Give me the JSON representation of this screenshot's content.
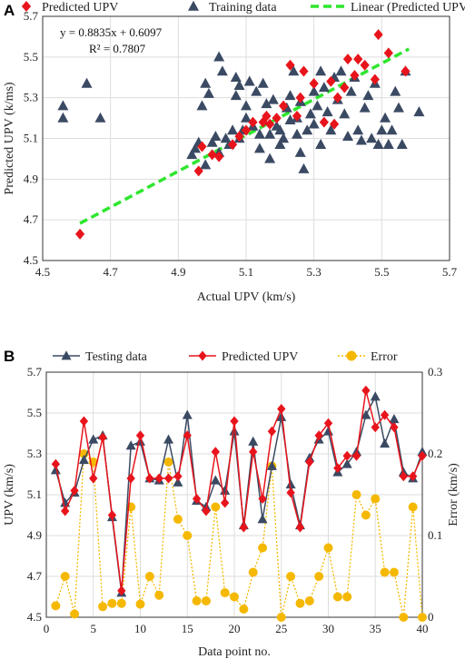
{
  "chart_data": [
    {
      "panel": "A",
      "type": "scatter",
      "xlabel": "Actual UPV (km/s)",
      "ylabel": "Predicted UPV (k/ms)",
      "xlim": [
        4.5,
        5.7
      ],
      "ylim": [
        4.5,
        5.7
      ],
      "xticks": [
        "4.5",
        "4.7",
        "4.9",
        "5.1",
        "5.3",
        "5.5",
        "5.7"
      ],
      "yticks": [
        "4.5",
        "4.7",
        "4.9",
        "5.1",
        "5.3",
        "5.5",
        "5.7"
      ],
      "grid": true,
      "legend": [
        "Predicted UPV",
        "Training data",
        "Linear (Predicted UPV)"
      ],
      "annotation": [
        "y = 0.8835x + 0.6097",
        "R² = 0.7807"
      ],
      "series": [
        {
          "name": "Training data",
          "marker": "triangle",
          "color": "#3b4a63",
          "points": [
            [
              4.56,
              5.26
            ],
            [
              4.56,
              5.2
            ],
            [
              4.63,
              5.37
            ],
            [
              4.67,
              5.2
            ],
            [
              4.94,
              5.02
            ],
            [
              4.95,
              5.05
            ],
            [
              4.96,
              5.08
            ],
            [
              4.97,
              5.26
            ],
            [
              4.98,
              5.37
            ],
            [
              4.98,
              4.97
            ],
            [
              4.99,
              5.32
            ],
            [
              5.0,
              5.08
            ],
            [
              5.01,
              5.11
            ],
            [
              5.02,
              5.5
            ],
            [
              5.02,
              5.03
            ],
            [
              5.03,
              5.43
            ],
            [
              5.04,
              5.1
            ],
            [
              5.05,
              5.07
            ],
            [
              5.06,
              5.14
            ],
            [
              5.07,
              5.4
            ],
            [
              5.07,
              5.31
            ],
            [
              5.08,
              5.36
            ],
            [
              5.08,
              5.1
            ],
            [
              5.09,
              5.14
            ],
            [
              5.1,
              5.26
            ],
            [
              5.1,
              5.2
            ],
            [
              5.11,
              5.38
            ],
            [
              5.12,
              5.16
            ],
            [
              5.13,
              5.33
            ],
            [
              5.14,
              5.12
            ],
            [
              5.14,
              5.05
            ],
            [
              5.15,
              5.37
            ],
            [
              5.16,
              5.27
            ],
            [
              5.17,
              5.0
            ],
            [
              5.17,
              5.12
            ],
            [
              5.18,
              5.29
            ],
            [
              5.19,
              5.16
            ],
            [
              5.2,
              5.14
            ],
            [
              5.2,
              5.07
            ],
            [
              5.21,
              5.1
            ],
            [
              5.22,
              5.25
            ],
            [
              5.23,
              5.19
            ],
            [
              5.23,
              5.31
            ],
            [
              5.24,
              5.43
            ],
            [
              5.25,
              5.12
            ],
            [
              5.25,
              5.2
            ],
            [
              5.26,
              5.28
            ],
            [
              5.26,
              5.03
            ],
            [
              5.27,
              4.95
            ],
            [
              5.28,
              5.14
            ],
            [
              5.29,
              5.22
            ],
            [
              5.3,
              5.33
            ],
            [
              5.3,
              5.17
            ],
            [
              5.31,
              5.26
            ],
            [
              5.32,
              5.43
            ],
            [
              5.32,
              5.07
            ],
            [
              5.33,
              5.35
            ],
            [
              5.34,
              5.23
            ],
            [
              5.35,
              5.14
            ],
            [
              5.36,
              5.4
            ],
            [
              5.37,
              5.29
            ],
            [
              5.38,
              5.43
            ],
            [
              5.39,
              5.22
            ],
            [
              5.4,
              5.11
            ],
            [
              5.41,
              5.33
            ],
            [
              5.42,
              5.4
            ],
            [
              5.43,
              5.14
            ],
            [
              5.44,
              5.09
            ],
            [
              5.45,
              5.25
            ],
            [
              5.46,
              5.31
            ],
            [
              5.47,
              5.1
            ],
            [
              5.48,
              5.37
            ],
            [
              5.49,
              5.07
            ],
            [
              5.5,
              5.14
            ],
            [
              5.51,
              5.2
            ],
            [
              5.52,
              5.07
            ],
            [
              5.53,
              5.14
            ],
            [
              5.54,
              5.33
            ],
            [
              5.55,
              5.25
            ],
            [
              5.56,
              5.07
            ],
            [
              5.57,
              5.43
            ],
            [
              5.61,
              5.23
            ]
          ]
        },
        {
          "name": "Predicted UPV",
          "marker": "diamond",
          "color": "#e8141c",
          "points": [
            [
              4.61,
              4.63
            ],
            [
              4.96,
              4.94
            ],
            [
              4.97,
              5.06
            ],
            [
              5.0,
              5.02
            ],
            [
              5.02,
              5.01
            ],
            [
              5.06,
              5.07
            ],
            [
              5.08,
              5.11
            ],
            [
              5.1,
              5.14
            ],
            [
              5.12,
              5.18
            ],
            [
              5.15,
              5.18
            ],
            [
              5.16,
              5.21
            ],
            [
              5.17,
              5.17
            ],
            [
              5.19,
              5.2
            ],
            [
              5.21,
              5.26
            ],
            [
              5.23,
              5.46
            ],
            [
              5.25,
              5.21
            ],
            [
              5.26,
              5.3
            ],
            [
              5.27,
              5.43
            ],
            [
              5.3,
              5.37
            ],
            [
              5.33,
              5.18
            ],
            [
              5.35,
              5.38
            ],
            [
              5.36,
              5.17
            ],
            [
              5.37,
              5.3
            ],
            [
              5.39,
              5.35
            ],
            [
              5.4,
              5.49
            ],
            [
              5.42,
              5.41
            ],
            [
              5.43,
              5.49
            ],
            [
              5.45,
              5.46
            ],
            [
              5.48,
              5.39
            ],
            [
              5.49,
              5.61
            ],
            [
              5.52,
              5.52
            ],
            [
              5.57,
              5.43
            ]
          ]
        },
        {
          "name": "Linear (Predicted UPV)",
          "type": "line",
          "style": "dashed",
          "color": "#2ee62e",
          "slope": 0.8835,
          "intercept": 0.6097,
          "x_range": [
            4.61,
            5.58
          ]
        }
      ]
    },
    {
      "panel": "B",
      "type": "line",
      "xlabel": "Data point no.",
      "ylabel": "UPV (km/s)",
      "ylabel_right": "Error (km/s)",
      "xlim": [
        0,
        40
      ],
      "ylim": [
        4.5,
        5.7
      ],
      "ylim_right": [
        0,
        0.3
      ],
      "xticks": [
        "0",
        "5",
        "10",
        "15",
        "20",
        "25",
        "30",
        "35",
        "40"
      ],
      "yticks": [
        "4.5",
        "4.7",
        "4.9",
        "5.1",
        "5.3",
        "5.5",
        "5.7"
      ],
      "yticks_right": [
        "0",
        "0.1",
        "0.2",
        "0.3"
      ],
      "grid": true,
      "legend": [
        "Testing data",
        "Predicted UPV",
        "Error"
      ],
      "x": [
        1,
        2,
        3,
        4,
        5,
        6,
        7,
        8,
        9,
        10,
        11,
        12,
        13,
        14,
        15,
        16,
        17,
        18,
        19,
        20,
        21,
        22,
        23,
        24,
        25,
        26,
        27,
        28,
        29,
        30,
        31,
        32,
        33,
        34,
        35,
        36,
        37,
        38,
        39,
        40
      ],
      "series": [
        {
          "name": "Testing data",
          "axis": "left",
          "marker": "triangle",
          "color": "#3b4a63",
          "values": [
            5.22,
            5.06,
            5.11,
            5.27,
            5.37,
            5.39,
            4.99,
            4.62,
            5.34,
            5.36,
            5.18,
            5.17,
            5.37,
            5.16,
            5.49,
            5.07,
            5.04,
            5.17,
            5.12,
            5.41,
            4.95,
            5.36,
            4.98,
            5.24,
            5.48,
            5.15,
            4.95,
            5.28,
            5.37,
            5.41,
            5.21,
            5.25,
            5.31,
            5.49,
            5.58,
            5.35,
            5.47,
            5.21,
            5.18,
            5.31
          ]
        },
        {
          "name": "Predicted UPV",
          "axis": "left",
          "marker": "diamond",
          "color": "#e8141c",
          "values": [
            5.25,
            5.02,
            5.12,
            5.46,
            5.18,
            5.38,
            5.0,
            4.63,
            5.18,
            5.39,
            5.18,
            5.18,
            5.18,
            5.19,
            5.39,
            5.08,
            5.02,
            5.31,
            5.06,
            5.46,
            4.94,
            5.31,
            5.08,
            5.41,
            5.52,
            5.11,
            4.94,
            5.26,
            5.39,
            5.45,
            5.23,
            5.29,
            5.29,
            5.61,
            5.43,
            5.49,
            5.43,
            5.19,
            5.19,
            5.29
          ]
        },
        {
          "name": "Error",
          "axis": "right",
          "marker": "circle",
          "style": "dotted",
          "color": "#f5b800",
          "values": [
            0.014,
            0.05,
            0.004,
            0.2,
            0.19,
            0.013,
            0.017,
            0.017,
            0.135,
            0.016,
            0.05,
            0.027,
            0.19,
            0.12,
            0.1,
            0.02,
            0.02,
            0.135,
            0.03,
            0.025,
            0.01,
            0.055,
            0.085,
            0.185,
            0.0,
            0.05,
            0.017,
            0.02,
            0.05,
            0.085,
            0.025,
            0.025,
            0.15,
            0.125,
            0.145,
            0.055,
            0.055,
            0.0,
            0.135,
            0.0
          ]
        }
      ]
    }
  ]
}
